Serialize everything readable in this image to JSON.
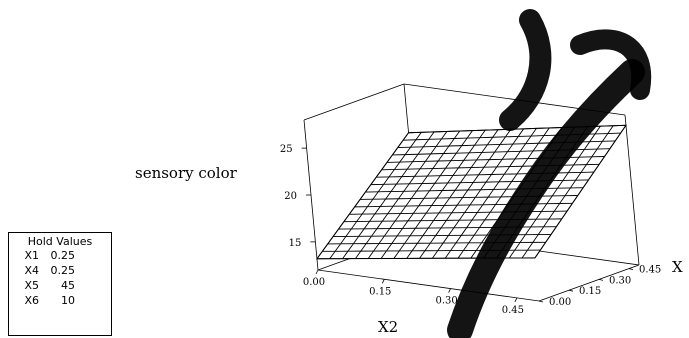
{
  "chart_data": {
    "type": "surface",
    "title": "",
    "zlabel": "sensory color",
    "xlabel": "X2",
    "ylabel": "X",
    "x_ticks": [
      "0.00",
      "0.15",
      "0.30",
      "0.45"
    ],
    "y_ticks": [
      "0.00",
      "0.15",
      "0.30",
      "0.45"
    ],
    "z_ticks": [
      "15",
      "20",
      "25"
    ],
    "xlim": [
      0,
      0.5
    ],
    "ylim": [
      0,
      0.5
    ],
    "zlim": [
      12,
      28
    ],
    "grid_size": 17,
    "surface_corners": {
      "x0_y0": 13.2,
      "x1_y0": 16.6,
      "x0_y1": 22.8,
      "x1_y1": 26.9
    },
    "hold_values": {
      "title": "Hold Values",
      "rows": [
        {
          "name": "X1",
          "value": "0.25"
        },
        {
          "name": "X4",
          "value": "0.25"
        },
        {
          "name": "X5",
          "value": "45"
        },
        {
          "name": "X6",
          "value": "10"
        }
      ]
    }
  }
}
